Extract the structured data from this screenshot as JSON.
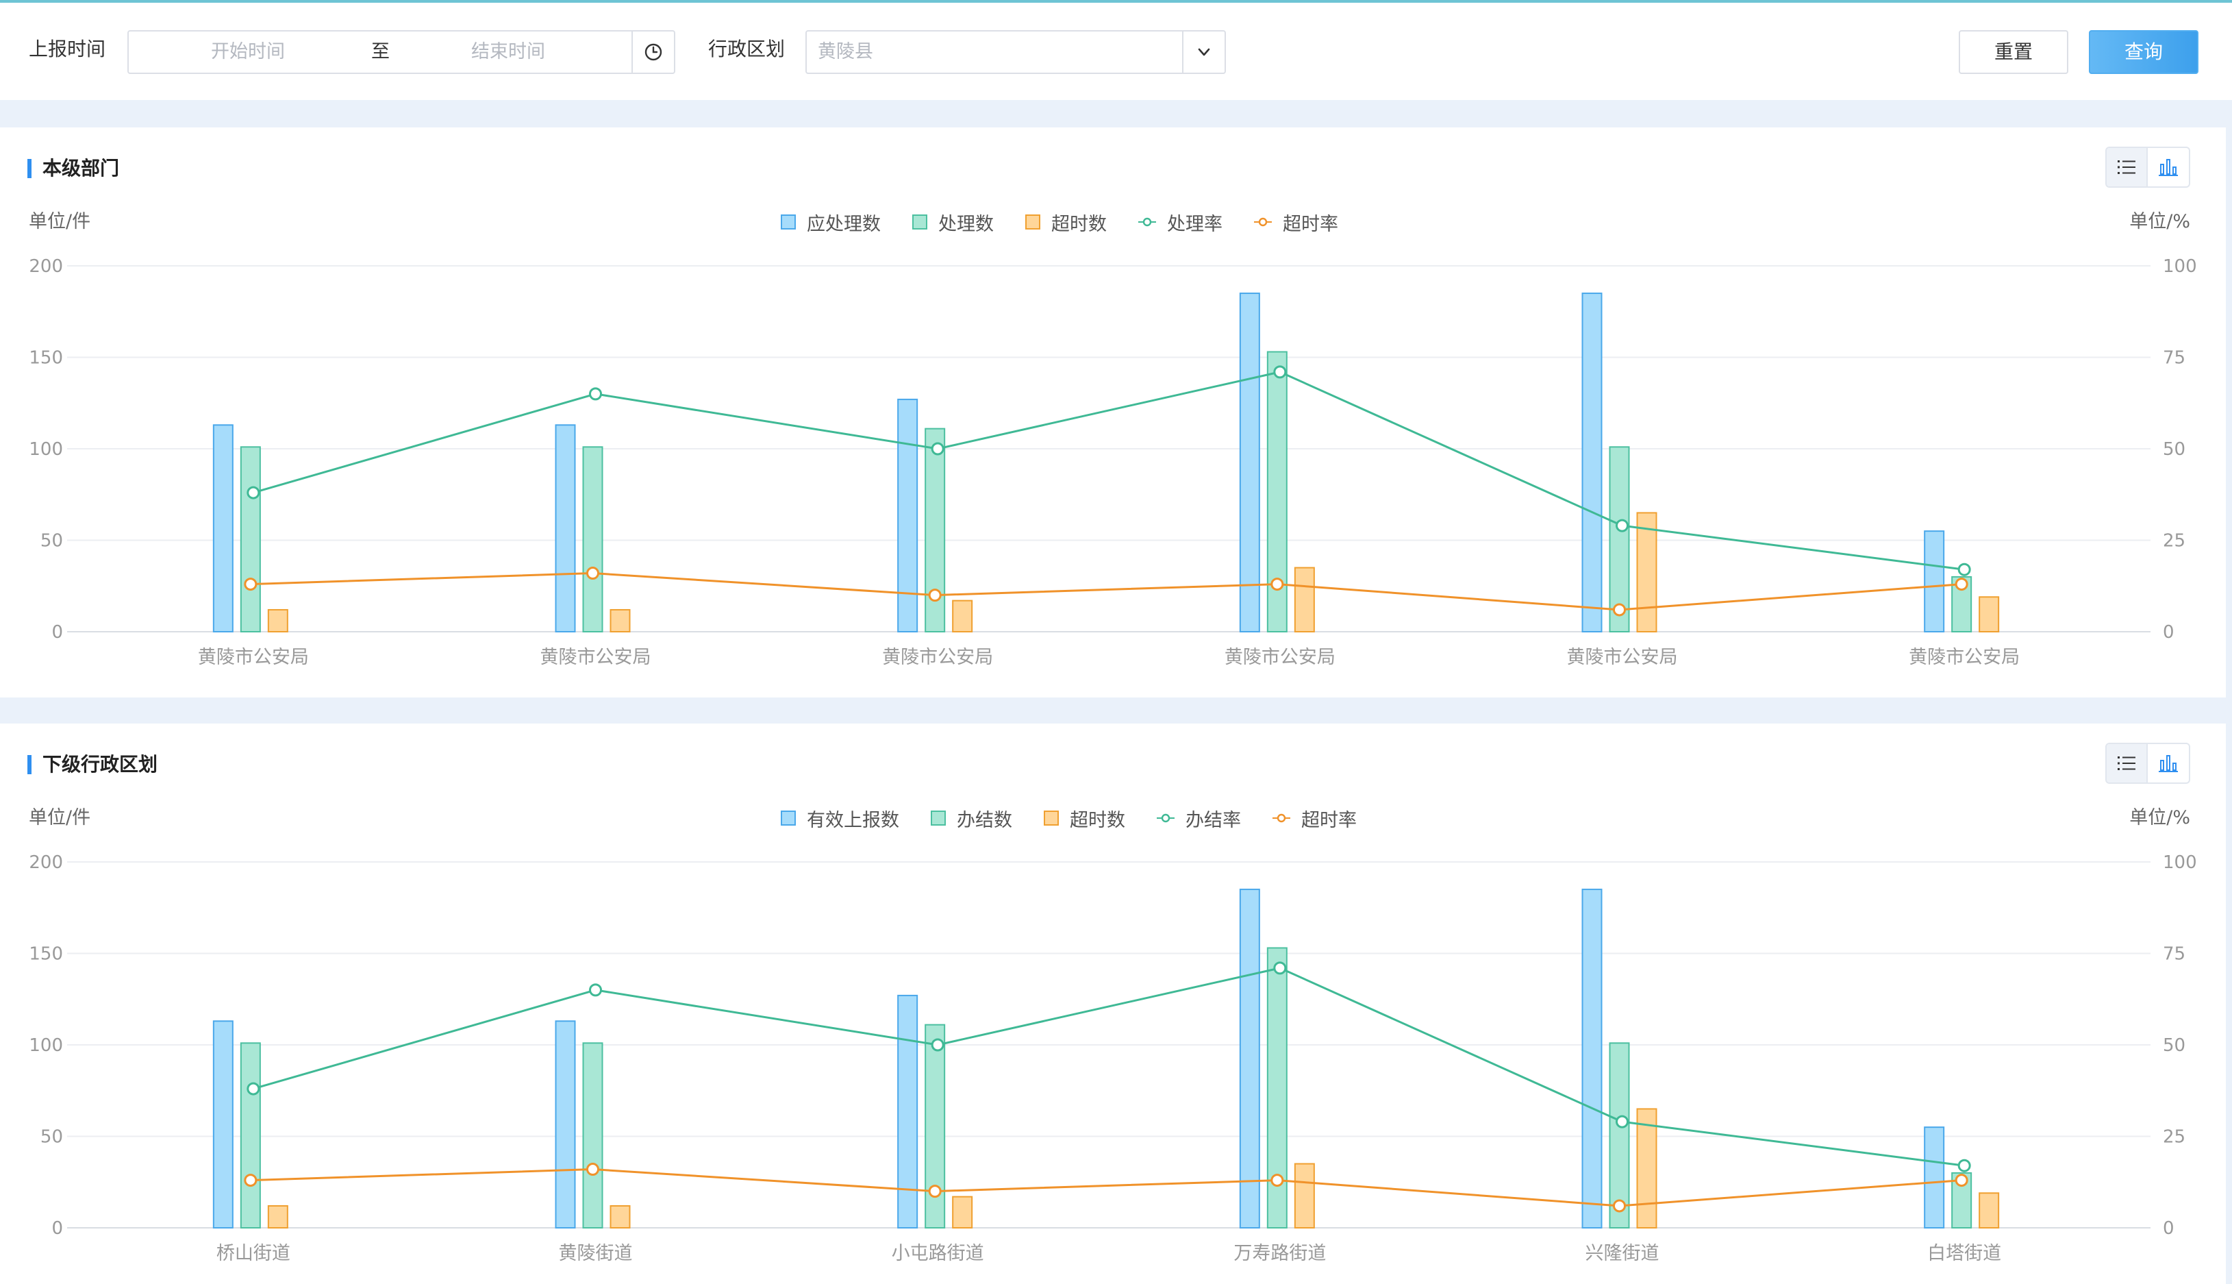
{
  "filter": {
    "report_time_label": "上报时间",
    "start_placeholder": "开始时间",
    "range_separator": "至",
    "end_placeholder": "结束时间",
    "region_label": "行政区划",
    "region_value": "黄陵县",
    "reset_label": "重置",
    "query_label": "查询"
  },
  "panels": [
    {
      "title": "本级部门",
      "unit_left": "单位/件",
      "unit_right": "单位/%",
      "legend": [
        "应处理数",
        "处理数",
        "超时数",
        "处理率",
        "超时率"
      ]
    },
    {
      "title": "下级行政区划",
      "unit_left": "单位/件",
      "unit_right": "单位/%",
      "legend": [
        "有效上报数",
        "办结数",
        "超时数",
        "办结率",
        "超时率"
      ]
    }
  ],
  "colors": {
    "blue_fill": "#a6dcfb",
    "blue_stroke": "#4aa8ea",
    "green_fill": "#a9e7d5",
    "green_stroke": "#4cc0a0",
    "orange_fill": "#ffd699",
    "orange_stroke": "#f0a030",
    "rate_green": "#3fb995",
    "rate_orange": "#f0922a"
  },
  "chart_data": [
    {
      "type": "bar",
      "categories": [
        "黄陵市公安局",
        "黄陵市公安局",
        "黄陵市公安局",
        "黄陵市公安局",
        "黄陵市公安局",
        "黄陵市公安局"
      ],
      "ylim": [
        0,
        200
      ],
      "y2lim": [
        0,
        100
      ],
      "yticks": [
        "0",
        "50",
        "100",
        "150",
        "200"
      ],
      "y2ticks": [
        "0",
        "25",
        "50",
        "75",
        "100"
      ],
      "series": [
        {
          "name": "应处理数",
          "kind": "bar",
          "axis": "left",
          "values": [
            113,
            113,
            127,
            185,
            185,
            55
          ]
        },
        {
          "name": "处理数",
          "kind": "bar",
          "axis": "left",
          "values": [
            101,
            101,
            111,
            153,
            101,
            30
          ]
        },
        {
          "name": "超时数",
          "kind": "bar",
          "axis": "left",
          "values": [
            12,
            12,
            17,
            35,
            65,
            19
          ]
        },
        {
          "name": "处理率",
          "kind": "line",
          "axis": "right",
          "values": [
            38,
            65,
            50,
            71,
            29,
            17
          ]
        },
        {
          "name": "超时率",
          "kind": "line",
          "axis": "right",
          "values": [
            13,
            16,
            10,
            13,
            6,
            13
          ]
        }
      ]
    },
    {
      "type": "bar",
      "categories": [
        "桥山街道",
        "黄陵街道",
        "小屯路街道",
        "万寿路街道",
        "兴隆街道",
        "白塔街道"
      ],
      "ylim": [
        0,
        200
      ],
      "y2lim": [
        0,
        100
      ],
      "yticks": [
        "0",
        "50",
        "100",
        "150",
        "200"
      ],
      "y2ticks": [
        "0",
        "25",
        "50",
        "75",
        "100"
      ],
      "series": [
        {
          "name": "有效上报数",
          "kind": "bar",
          "axis": "left",
          "values": [
            113,
            113,
            127,
            185,
            185,
            55
          ]
        },
        {
          "name": "办结数",
          "kind": "bar",
          "axis": "left",
          "values": [
            101,
            101,
            111,
            153,
            101,
            30
          ]
        },
        {
          "name": "超时数",
          "kind": "bar",
          "axis": "left",
          "values": [
            12,
            12,
            17,
            35,
            65,
            19
          ]
        },
        {
          "name": "办结率",
          "kind": "line",
          "axis": "right",
          "values": [
            38,
            65,
            50,
            71,
            29,
            17
          ]
        },
        {
          "name": "超时率",
          "kind": "line",
          "axis": "right",
          "values": [
            13,
            16,
            10,
            13,
            6,
            13
          ]
        }
      ]
    }
  ]
}
